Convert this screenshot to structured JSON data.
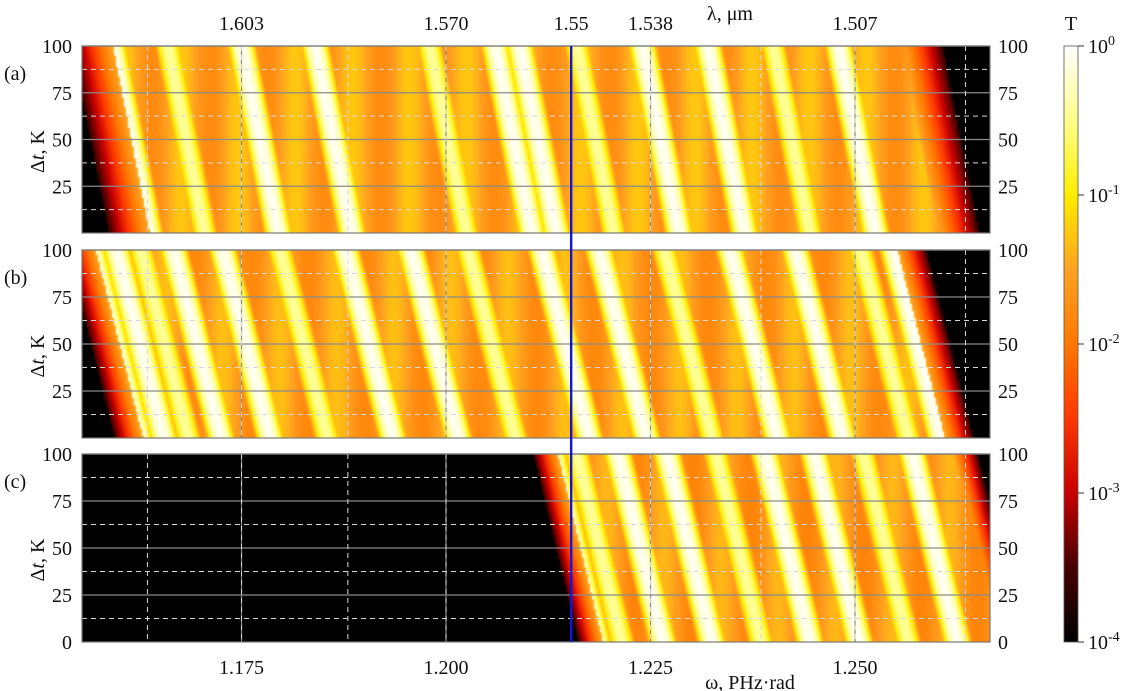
{
  "chart_data": {
    "type": "heatmap",
    "x_axis_bottom": {
      "label": "ω, PHz·rad",
      "range": [
        1.1555,
        1.2665
      ],
      "ticks": [
        1.175,
        1.2,
        1.225,
        1.25
      ],
      "tick_labels": [
        "1.175",
        "1.200",
        "1.225",
        "1.250"
      ]
    },
    "x_axis_top": {
      "label": "λ, μm",
      "tick_labels": [
        "1.603",
        "1.570",
        "1.55",
        "1.538",
        "1.507"
      ],
      "tick_positions_omega": [
        1.175,
        1.2,
        1.2153,
        1.225,
        1.25
      ]
    },
    "y_axis": {
      "label": "Δt, K",
      "range": [
        0,
        100
      ],
      "ticks": [
        25,
        50,
        75,
        100
      ],
      "bottom_panel_ticks": [
        0,
        25,
        50,
        75,
        100
      ]
    },
    "colorbar": {
      "title": "T",
      "scale": "log",
      "range": [
        0.0001,
        1
      ],
      "tick_bases": [
        "10",
        "10",
        "10",
        "10",
        "10"
      ],
      "tick_exponents": [
        "0",
        "-1",
        "-2",
        "-3",
        "-4"
      ]
    },
    "reference_line": {
      "omega": 1.2153,
      "color": "#1515d8"
    },
    "panels": [
      {
        "label": "(a)",
        "band": [
          1.1588,
          1.2652
        ],
        "background_log_T": -1.5,
        "edge_dark_width": 0.005,
        "tilt_per_100K": 0.0045,
        "peaks_at_0K": [
          1.1615,
          1.1637,
          1.1705,
          1.1795,
          1.1885,
          1.2025,
          1.2105,
          1.2135,
          1.2205,
          1.2285,
          1.2365,
          1.2445,
          1.2525,
          1.2625,
          1.2643
        ]
      },
      {
        "label": "(b)",
        "band": [
          1.1595,
          1.2645
        ],
        "background_log_T": -1.55,
        "edge_dark_width": 0.0035,
        "tilt_per_100K": 0.0058,
        "peaks_at_0K": [
          1.1625,
          1.1655,
          1.1685,
          1.1725,
          1.1785,
          1.1855,
          1.1935,
          1.2015,
          1.2085,
          1.2175,
          1.2245,
          1.2325,
          1.2405,
          1.2485,
          1.2565,
          1.2605,
          1.2628
        ]
      },
      {
        "label": "(c)",
        "band": [
          1.2162,
          1.2705
        ],
        "background_log_T": -1.6,
        "edge_dark_width": 0.003,
        "tilt_per_100K": 0.0055,
        "peaks_at_0K": [
          1.2165,
          1.2185,
          1.2215,
          1.2265,
          1.2325,
          1.2385,
          1.2445,
          1.2505,
          1.2565,
          1.2625
        ]
      }
    ]
  }
}
